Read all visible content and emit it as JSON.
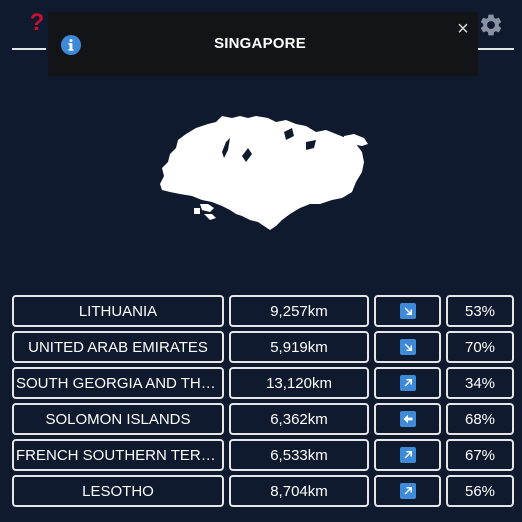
{
  "header": {
    "help_icon": "question-mark-icon",
    "help_glyph": "?",
    "settings_icon": "gear-icon"
  },
  "toast": {
    "icon": "info-icon",
    "title": "SINGAPORE",
    "close_glyph": "×"
  },
  "colors": {
    "background": "#0f1a2e",
    "help": "#c8102e",
    "info": "#3d8ad8",
    "direction_tile": "#3d8ad8"
  },
  "guesses": [
    {
      "country": "LITHUANIA",
      "distance": "9,257km",
      "direction": "arrow-down-right-icon",
      "proximity": "53%"
    },
    {
      "country": "UNITED ARAB EMIRATES",
      "distance": "5,919km",
      "direction": "arrow-down-right-icon",
      "proximity": "70%"
    },
    {
      "country": "SOUTH GEORGIA AND THE SOUTH SANDWICH ISLANDS",
      "distance": "13,120km",
      "direction": "arrow-up-right-icon",
      "proximity": "34%"
    },
    {
      "country": "SOLOMON ISLANDS",
      "distance": "6,362km",
      "direction": "arrow-left-icon",
      "proximity": "68%"
    },
    {
      "country": "FRENCH SOUTHERN TERRITORIES",
      "distance": "6,533km",
      "direction": "arrow-up-right-icon",
      "proximity": "67%"
    },
    {
      "country": "LESOTHO",
      "distance": "8,704km",
      "direction": "arrow-up-right-icon",
      "proximity": "56%"
    }
  ]
}
